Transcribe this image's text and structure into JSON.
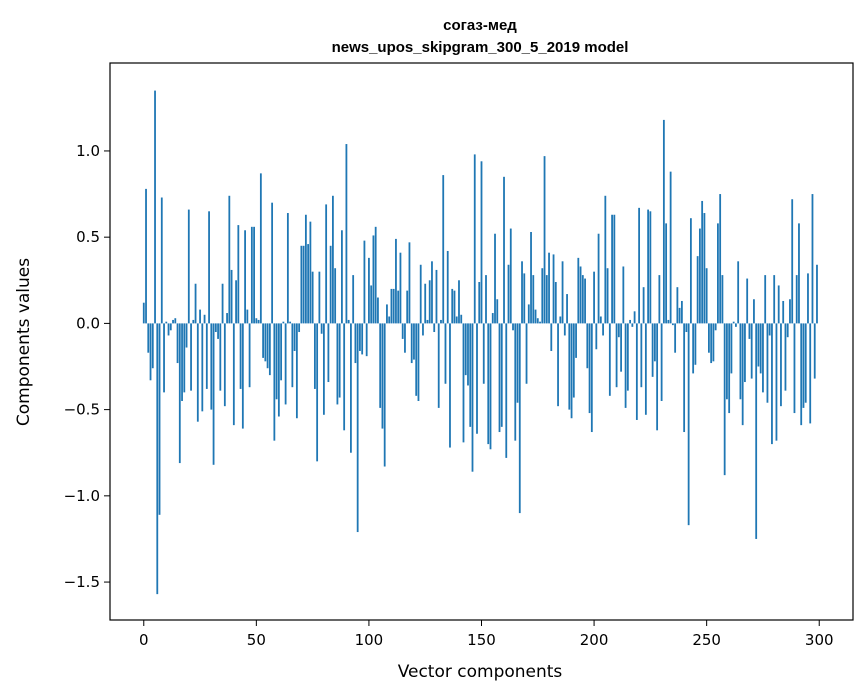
{
  "chart_data": {
    "type": "bar",
    "title": "согаз-мед",
    "subtitle": "news_upos_skipgram_300_5_2019 model",
    "xlabel": "Vector components",
    "ylabel": "Components values",
    "xlim": [
      -15,
      315
    ],
    "ylim": [
      -1.72,
      1.51
    ],
    "xticks": [
      0,
      50,
      100,
      150,
      200,
      250,
      300
    ],
    "xtick_labels": [
      "0",
      "50",
      "100",
      "150",
      "200",
      "250",
      "300"
    ],
    "yticks": [
      -1.5,
      -1.0,
      -0.5,
      0.0,
      0.5,
      1.0
    ],
    "ytick_labels": [
      "−1.5",
      "−1.0",
      "−0.5",
      "0.0",
      "0.5",
      "1.0"
    ],
    "bar_color": "#1f77b4",
    "grid": false,
    "values": [
      0.12,
      0.78,
      -0.17,
      -0.33,
      -0.26,
      1.35,
      -1.57,
      -1.11,
      0.73,
      -0.4,
      0.01,
      -0.07,
      -0.04,
      0.02,
      0.03,
      -0.23,
      -0.81,
      -0.45,
      -0.4,
      -0.14,
      0.66,
      -0.39,
      0.02,
      0.23,
      -0.57,
      0.08,
      -0.51,
      0.05,
      -0.38,
      0.65,
      -0.5,
      -0.82,
      -0.05,
      -0.09,
      -0.39,
      0.23,
      -0.48,
      0.06,
      0.74,
      0.31,
      -0.59,
      0.25,
      0.57,
      -0.38,
      -0.61,
      0.54,
      0.08,
      -0.37,
      0.56,
      0.56,
      0.03,
      0.02,
      0.87,
      -0.2,
      -0.22,
      -0.26,
      -0.3,
      0.7,
      -0.68,
      -0.44,
      -0.54,
      -0.33,
      0.01,
      -0.47,
      0.64,
      0.01,
      -0.37,
      -0.16,
      -0.55,
      -0.05,
      0.45,
      0.45,
      0.63,
      0.46,
      0.59,
      0.3,
      -0.38,
      -0.8,
      0.3,
      -0.06,
      -0.53,
      0.69,
      -0.34,
      0.45,
      0.74,
      0.32,
      -0.47,
      -0.43,
      0.54,
      -0.62,
      1.04,
      0.02,
      -0.75,
      0.28,
      -0.23,
      -1.21,
      -0.16,
      -0.18,
      0.48,
      -0.19,
      0.38,
      0.22,
      0.51,
      0.56,
      0.15,
      -0.49,
      -0.61,
      -0.83,
      0.11,
      0.04,
      0.2,
      0.2,
      0.49,
      0.19,
      0.41,
      -0.09,
      -0.17,
      0.19,
      0.47,
      -0.23,
      -0.21,
      -0.42,
      -0.45,
      0.34,
      -0.07,
      0.23,
      0.02,
      0.25,
      0.36,
      -0.05,
      0.31,
      -0.49,
      0.02,
      0.86,
      -0.35,
      0.42,
      -0.72,
      0.2,
      0.19,
      0.04,
      0.25,
      0.05,
      -0.69,
      -0.3,
      -0.36,
      -0.6,
      -0.86,
      0.98,
      -0.64,
      0.24,
      0.94,
      -0.35,
      0.28,
      -0.7,
      -0.73,
      0.06,
      0.52,
      0.14,
      -0.63,
      -0.6,
      0.85,
      -0.78,
      0.34,
      0.55,
      -0.04,
      -0.68,
      -0.46,
      -1.1,
      0.36,
      0.29,
      -0.35,
      0.11,
      0.53,
      0.28,
      0.08,
      0.03,
      0.01,
      0.32,
      0.97,
      0.28,
      0.41,
      -0.16,
      0.4,
      0.24,
      -0.48,
      0.04,
      0.36,
      -0.07,
      0.17,
      -0.5,
      -0.55,
      -0.43,
      -0.2,
      0.38,
      0.33,
      0.28,
      0.26,
      -0.26,
      -0.52,
      -0.63,
      0.3,
      -0.15,
      0.52,
      0.04,
      -0.07,
      0.74,
      0.32,
      -0.42,
      0.63,
      0.63,
      -0.37,
      -0.08,
      -0.28,
      0.33,
      -0.49,
      -0.39,
      0.02,
      -0.02,
      0.07,
      -0.56,
      0.67,
      -0.37,
      0.21,
      -0.53,
      0.66,
      0.65,
      -0.31,
      -0.22,
      -0.62,
      0.28,
      -0.45,
      1.18,
      0.58,
      0.02,
      0.88,
      -0.01,
      -0.17,
      0.21,
      0.09,
      0.13,
      -0.63,
      -0.05,
      -1.17,
      0.61,
      -0.29,
      -0.24,
      0.39,
      0.55,
      0.71,
      0.64,
      0.32,
      -0.17,
      -0.23,
      -0.22,
      -0.04,
      0.58,
      0.75,
      0.28,
      -0.88,
      -0.44,
      -0.52,
      -0.29,
      0.01,
      -0.02,
      0.36,
      -0.44,
      -0.59,
      -0.34,
      0.26,
      -0.09,
      -0.32,
      0.14,
      -1.25,
      -0.25,
      -0.29,
      -0.4,
      0.28,
      -0.46,
      -0.07,
      -0.7,
      0.28,
      -0.68,
      0.22,
      -0.48,
      0.13,
      -0.39,
      -0.08,
      0.14,
      0.72,
      -0.52,
      0.28,
      0.58,
      -0.59,
      -0.49,
      -0.46,
      0.29,
      -0.58,
      0.75,
      -0.32,
      0.34
    ]
  }
}
